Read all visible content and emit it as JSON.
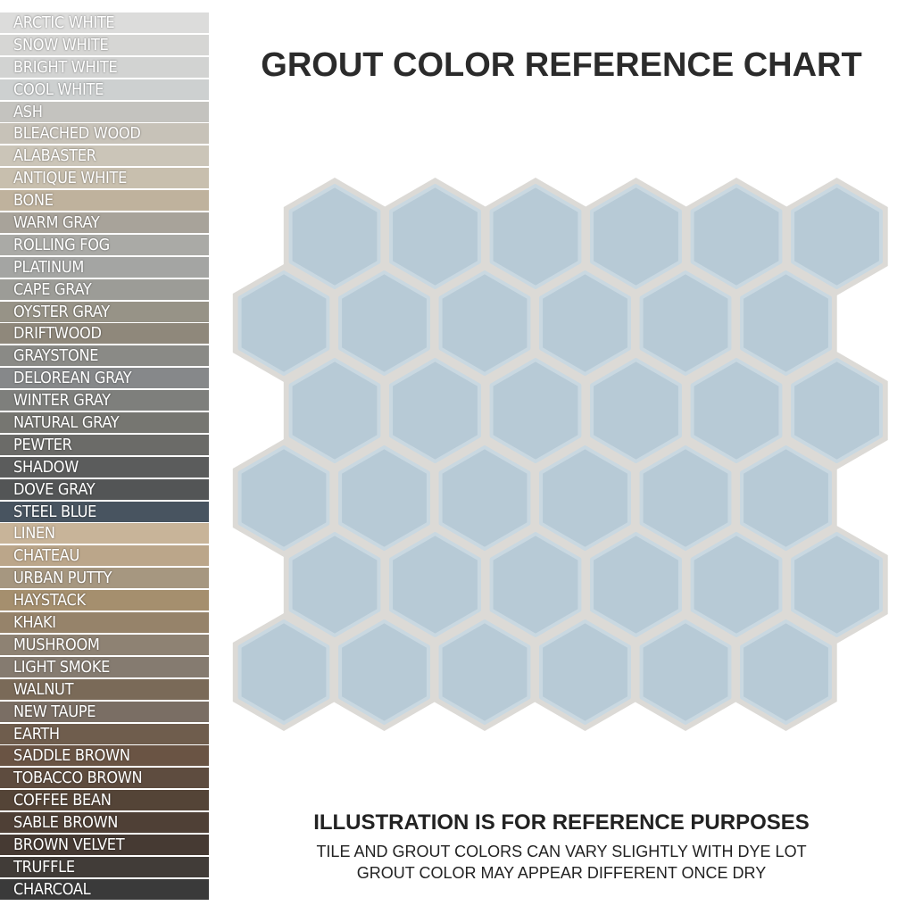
{
  "swatches": [
    {
      "name": "ARCTIC WHITE",
      "color": "#dcdcdb"
    },
    {
      "name": "SNOW WHITE",
      "color": "#d6d6d4"
    },
    {
      "name": "BRIGHT WHITE",
      "color": "#d2d3d2"
    },
    {
      "name": "COOL WHITE",
      "color": "#cdd0d0"
    },
    {
      "name": "ASH",
      "color": "#c4c3bf"
    },
    {
      "name": "BLEACHED WOOD",
      "color": "#c7c2b8"
    },
    {
      "name": "ALABASTER",
      "color": "#cbc5b8"
    },
    {
      "name": "ANTIQUE WHITE",
      "color": "#c8bfae"
    },
    {
      "name": "BONE",
      "color": "#bfb29d"
    },
    {
      "name": "WARM GRAY",
      "color": "#a8a39a"
    },
    {
      "name": "ROLLING FOG",
      "color": "#aaaaa6"
    },
    {
      "name": "PLATINUM",
      "color": "#a4a5a3"
    },
    {
      "name": "CAPE GRAY",
      "color": "#9c9c97"
    },
    {
      "name": "OYSTER GRAY",
      "color": "#979387"
    },
    {
      "name": "DRIFTWOOD",
      "color": "#8f887b"
    },
    {
      "name": "GRAYSTONE",
      "color": "#8a8a86"
    },
    {
      "name": "DELOREAN GRAY",
      "color": "#86888a"
    },
    {
      "name": "WINTER GRAY",
      "color": "#7e7f7c"
    },
    {
      "name": "NATURAL GRAY",
      "color": "#767671"
    },
    {
      "name": "PEWTER",
      "color": "#6b6b68"
    },
    {
      "name": "SHADOW",
      "color": "#5b5c5c"
    },
    {
      "name": "DOVE GRAY",
      "color": "#535556"
    },
    {
      "name": "STEEL BLUE",
      "color": "#485460"
    },
    {
      "name": "LINEN",
      "color": "#c8b499"
    },
    {
      "name": "CHATEAU",
      "color": "#bba68a"
    },
    {
      "name": "URBAN PUTTY",
      "color": "#a69780"
    },
    {
      "name": "HAYSTACK",
      "color": "#a58f6e"
    },
    {
      "name": "KHAKI",
      "color": "#96836a"
    },
    {
      "name": "MUSHROOM",
      "color": "#8e8273"
    },
    {
      "name": "LIGHT SMOKE",
      "color": "#857b70"
    },
    {
      "name": "WALNUT",
      "color": "#7a6a58"
    },
    {
      "name": "NEW TAUPE",
      "color": "#7a6e64"
    },
    {
      "name": "EARTH",
      "color": "#6f5d4d"
    },
    {
      "name": "SADDLE BROWN",
      "color": "#6a5444"
    },
    {
      "name": "TOBACCO BROWN",
      "color": "#5e4c3f"
    },
    {
      "name": "COFFEE BEAN",
      "color": "#544437"
    },
    {
      "name": "SABLE BROWN",
      "color": "#4f4036"
    },
    {
      "name": "BROWN VELVET",
      "color": "#463a33"
    },
    {
      "name": "TRUFFLE",
      "color": "#413c38"
    },
    {
      "name": "CHARCOAL",
      "color": "#3a3a3a"
    }
  ],
  "header": {
    "title": "GROUT COLOR REFERENCE CHART"
  },
  "footer": {
    "heading": "ILLUSTRATION IS FOR REFERENCE PURPOSES",
    "lines": [
      "TILE AND GROUT COLORS CAN VARY SLIGHTLY WITH DYE LOT",
      "GROUT COLOR MAY APPEAR DIFFERENT ONCE DRY"
    ]
  }
}
